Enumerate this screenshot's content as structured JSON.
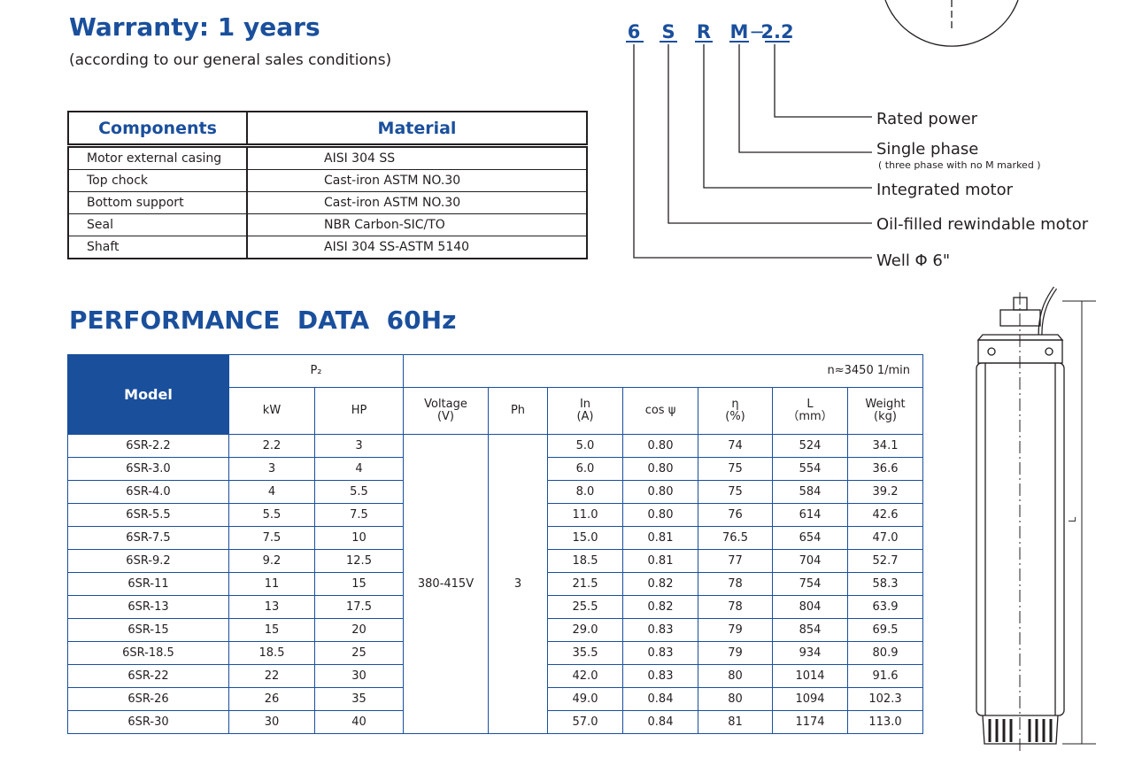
{
  "warranty": {
    "title": "Warranty: 1 years",
    "subtitle": "(according to our general sales conditions)"
  },
  "materials": {
    "headers": [
      "Components",
      "Material"
    ],
    "rows": [
      [
        "Motor external casing",
        "AISI 304 SS"
      ],
      [
        "Top chock",
        "Cast-iron ASTM NO.30"
      ],
      [
        "Bottom support",
        "Cast-iron ASTM NO.30"
      ],
      [
        "Seal",
        "NBR Carbon-SIC/TO"
      ],
      [
        "Shaft",
        "AISI 304 SS-ASTM 5140"
      ]
    ]
  },
  "code": {
    "parts": [
      "6",
      "S",
      "R",
      "M",
      "−",
      "2.2"
    ],
    "labels": [
      "Rated power",
      "Single phase",
      "( three phase with no M marked )",
      "Integrated motor",
      "Oil-filled rewindable motor",
      "Well Φ 6\""
    ]
  },
  "performance": {
    "title": "PERFORMANCE  DATA  60Hz",
    "headers": {
      "model": "Model",
      "p2": "P₂",
      "speed": "n≈3450 1/min",
      "columns": [
        "kW",
        "HP",
        "Voltage\n(V)",
        "Ph",
        "In\n(A)",
        "cos ψ",
        "η\n(%)",
        "L\n（mm）",
        "Weight\n(kg)"
      ]
    },
    "voltage": "380-415V",
    "phase": "3",
    "rows": [
      [
        "6SR-2.2",
        "2.2",
        "3",
        "5.0",
        "0.80",
        "74",
        "524",
        "34.1"
      ],
      [
        "6SR-3.0",
        "3",
        "4",
        "6.0",
        "0.80",
        "75",
        "554",
        "36.6"
      ],
      [
        "6SR-4.0",
        "4",
        "5.5",
        "8.0",
        "0.80",
        "75",
        "584",
        "39.2"
      ],
      [
        "6SR-5.5",
        "5.5",
        "7.5",
        "11.0",
        "0.80",
        "76",
        "614",
        "42.6"
      ],
      [
        "6SR-7.5",
        "7.5",
        "10",
        "15.0",
        "0.81",
        "76.5",
        "654",
        "47.0"
      ],
      [
        "6SR-9.2",
        "9.2",
        "12.5",
        "18.5",
        "0.81",
        "77",
        "704",
        "52.7"
      ],
      [
        "6SR-11",
        "11",
        "15",
        "21.5",
        "0.82",
        "78",
        "754",
        "58.3"
      ],
      [
        "6SR-13",
        "13",
        "17.5",
        "25.5",
        "0.82",
        "78",
        "804",
        "63.9"
      ],
      [
        "6SR-15",
        "15",
        "20",
        "29.0",
        "0.83",
        "79",
        "854",
        "69.5"
      ],
      [
        "6SR-18.5",
        "18.5",
        "25",
        "35.5",
        "0.83",
        "79",
        "934",
        "80.9"
      ],
      [
        "6SR-22",
        "22",
        "30",
        "42.0",
        "0.83",
        "80",
        "1014",
        "91.6"
      ],
      [
        "6SR-26",
        "26",
        "35",
        "49.0",
        "0.84",
        "80",
        "1094",
        "102.3"
      ],
      [
        "6SR-30",
        "30",
        "40",
        "57.0",
        "0.84",
        "81",
        "1174",
        "113.0"
      ]
    ]
  },
  "drawing": {
    "dimension": "L"
  }
}
